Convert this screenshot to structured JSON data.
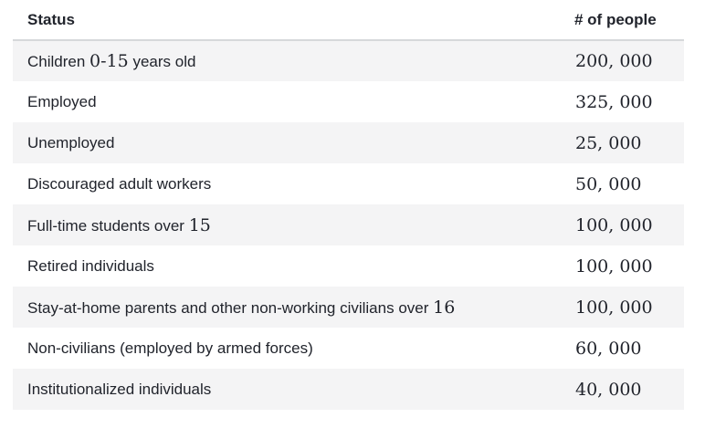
{
  "table": {
    "headers": {
      "status": "Status",
      "count": "# of people"
    },
    "rows": [
      {
        "status_pre": "Children ",
        "status_num": "0-15",
        "status_post": " years old",
        "count": "200, 000"
      },
      {
        "status_pre": "Employed",
        "status_num": "",
        "status_post": "",
        "count": "325, 000"
      },
      {
        "status_pre": "Unemployed",
        "status_num": "",
        "status_post": "",
        "count": "25, 000"
      },
      {
        "status_pre": "Discouraged adult workers",
        "status_num": "",
        "status_post": "",
        "count": "50, 000"
      },
      {
        "status_pre": "Full-time students over ",
        "status_num": "15",
        "status_post": "",
        "count": "100, 000"
      },
      {
        "status_pre": "Retired individuals",
        "status_num": "",
        "status_post": "",
        "count": "100, 000"
      },
      {
        "status_pre": "Stay-at-home parents and other non-working civilians over ",
        "status_num": "16",
        "status_post": "",
        "count": "100, 000"
      },
      {
        "status_pre": "Non-civilians (employed by armed forces)",
        "status_num": "",
        "status_post": "",
        "count": "60, 000"
      },
      {
        "status_pre": "Institutionalized individuals",
        "status_num": "",
        "status_post": "",
        "count": "40, 000"
      }
    ]
  }
}
